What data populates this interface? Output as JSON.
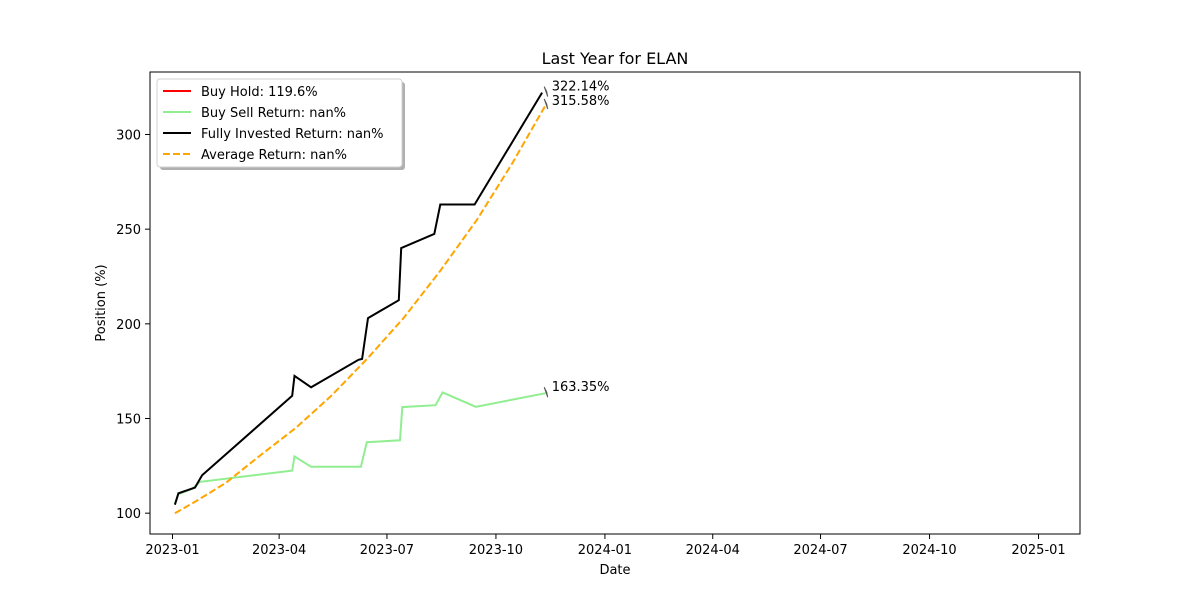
{
  "chart_data": {
    "type": "line",
    "title": "Last Year for ELAN",
    "xlabel": "Date",
    "ylabel": "Position (%)",
    "x_ticks": [
      "2023-01",
      "2023-04",
      "2023-07",
      "2023-10",
      "2024-01",
      "2024-04",
      "2024-07",
      "2024-10",
      "2025-01"
    ],
    "y_ticks": [
      100,
      150,
      200,
      250,
      300
    ],
    "xlim": [
      "2022-12-13",
      "2025-02-05"
    ],
    "ylim": [
      89,
      333
    ],
    "grid": false,
    "legend_position": "top-left",
    "series": [
      {
        "name": "Buy Hold: 119.6%",
        "color": "#ff0000",
        "dash": "solid",
        "points": []
      },
      {
        "name": "Buy Sell Return: nan%",
        "color": "#90ee90",
        "dash": "solid",
        "points": [
          [
            "2023-01-03",
            105
          ],
          [
            "2023-01-06",
            110
          ],
          [
            "2023-01-18",
            113
          ],
          [
            "2023-01-24",
            116.5
          ],
          [
            "2023-04-12",
            122.5
          ],
          [
            "2023-04-14",
            130
          ],
          [
            "2023-04-28",
            124.5
          ],
          [
            "2023-06-09",
            124.5
          ],
          [
            "2023-06-14",
            137.5
          ],
          [
            "2023-07-12",
            138.5
          ],
          [
            "2023-07-14",
            156
          ],
          [
            "2023-08-11",
            157
          ],
          [
            "2023-08-17",
            163.8
          ],
          [
            "2023-09-14",
            156.2
          ],
          [
            "2023-11-12",
            163.35
          ]
        ]
      },
      {
        "name": "Fully Invested Return: nan%",
        "color": "#000000",
        "dash": "solid",
        "points": [
          [
            "2023-01-03",
            104.5
          ],
          [
            "2023-01-06",
            110.5
          ],
          [
            "2023-01-20",
            113.5
          ],
          [
            "2023-01-26",
            120
          ],
          [
            "2023-04-12",
            162
          ],
          [
            "2023-04-14",
            172.5
          ],
          [
            "2023-04-28",
            166.5
          ],
          [
            "2023-06-07",
            181
          ],
          [
            "2023-06-10",
            181.5
          ],
          [
            "2023-06-15",
            203
          ],
          [
            "2023-07-11",
            212.5
          ],
          [
            "2023-07-13",
            240
          ],
          [
            "2023-08-10",
            247.5
          ],
          [
            "2023-08-15",
            263
          ],
          [
            "2023-09-13",
            263
          ],
          [
            "2023-11-09",
            322.14
          ]
        ]
      },
      {
        "name": "Average Return: nan%",
        "color": "#ffa500",
        "dash": "dashed",
        "points": [
          [
            "2023-01-03",
            100
          ],
          [
            "2023-01-20",
            106
          ],
          [
            "2023-02-15",
            116
          ],
          [
            "2023-03-15",
            130
          ],
          [
            "2023-04-15",
            145
          ],
          [
            "2023-05-15",
            162
          ],
          [
            "2023-06-15",
            182
          ],
          [
            "2023-07-15",
            203
          ],
          [
            "2023-08-15",
            228
          ],
          [
            "2023-09-15",
            255
          ],
          [
            "2023-10-15",
            285
          ],
          [
            "2023-11-12",
            315.58
          ]
        ]
      }
    ],
    "annotations": [
      {
        "text": "322.14%",
        "x": "2023-11-12",
        "y": 322.14
      },
      {
        "text": "315.58%",
        "x": "2023-11-12",
        "y": 315.58
      },
      {
        "text": "163.35%",
        "x": "2023-11-12",
        "y": 163.35
      }
    ]
  }
}
